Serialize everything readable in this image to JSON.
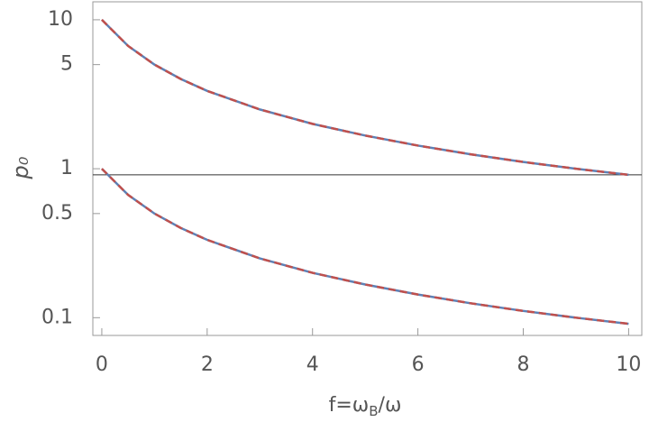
{
  "chart_data": {
    "type": "line",
    "xlabel": [
      "f=ω",
      "B",
      "/ω"
    ],
    "ylabel": "p₀",
    "x": [
      0,
      0.5,
      1,
      1.5,
      2,
      3,
      4,
      5,
      6,
      7,
      8,
      9,
      10
    ],
    "series": [
      {
        "color": "#5e81b5",
        "dash": "none",
        "values": [
          10,
          6.67,
          5,
          4,
          3.33,
          2.5,
          2,
          1.67,
          1.43,
          1.25,
          1.11,
          1,
          0.91
        ]
      },
      {
        "color": "#c0504d",
        "dash": "8 5",
        "values": [
          10,
          6.67,
          5,
          4,
          3.33,
          2.5,
          2,
          1.67,
          1.43,
          1.25,
          1.11,
          1,
          0.91
        ]
      },
      {
        "color": "#5e81b5",
        "dash": "none",
        "values": [
          1,
          0.667,
          0.5,
          0.4,
          0.333,
          0.25,
          0.2,
          0.167,
          0.143,
          0.125,
          0.111,
          0.1,
          0.091
        ]
      },
      {
        "color": "#c0504d",
        "dash": "8 5",
        "values": [
          1,
          0.667,
          0.5,
          0.4,
          0.333,
          0.25,
          0.2,
          0.167,
          0.143,
          0.125,
          0.111,
          0.1,
          0.091
        ]
      }
    ],
    "hline": 0.91,
    "xlim": [
      -0.17,
      10.25
    ],
    "xticks": [
      0,
      2,
      4,
      6,
      8,
      10
    ],
    "ylim": [
      0.076,
      13.2
    ],
    "yticks": [
      0.1,
      0.5,
      1,
      5,
      10
    ],
    "ylog": true
  }
}
